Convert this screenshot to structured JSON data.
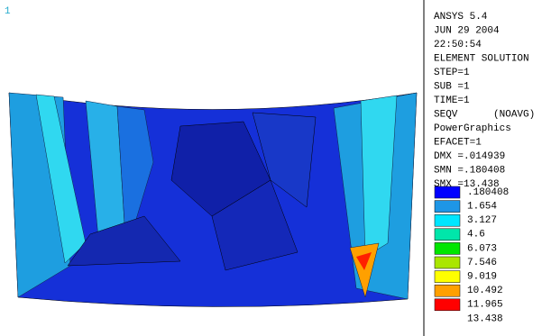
{
  "window_number": "1",
  "header": {
    "lines": [
      "ANSYS 5.4",
      "JUN 29 2004",
      "22:50:54",
      "ELEMENT SOLUTION",
      "STEP=1",
      "SUB =1",
      "TIME=1",
      "SEQV      (NOAVG)",
      "PowerGraphics",
      "EFACET=1",
      "DMX =.014939",
      "SMN =.180408",
      "SMX =13.438"
    ]
  },
  "legend": {
    "colors": [
      "#0000ff",
      "#1e96e6",
      "#00e6ff",
      "#00e6aa",
      "#00e600",
      "#aae600",
      "#ffff00",
      "#ffa000",
      "#ff0000"
    ],
    "labels": [
      ".180408",
      "1.654",
      "3.127",
      "4.6",
      "6.073",
      "7.546",
      "9.019",
      "10.492",
      "11.965",
      "13.438"
    ]
  }
}
